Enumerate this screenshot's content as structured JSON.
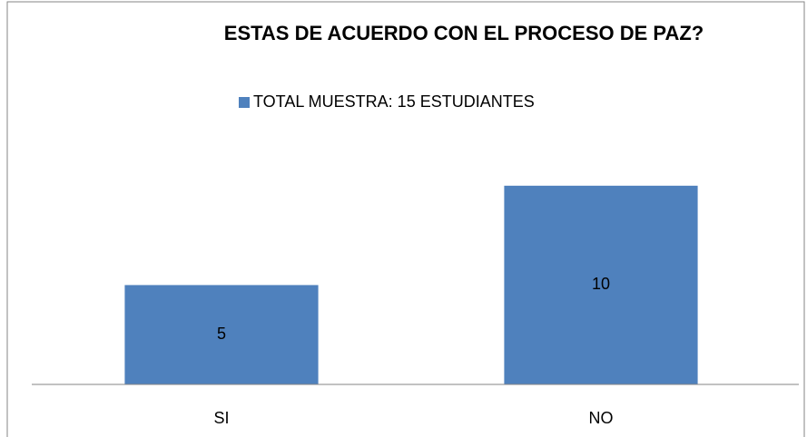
{
  "chart_data": {
    "type": "bar",
    "title": "ESTAS DE ACUERDO CON EL PROCESO DE PAZ?",
    "categories": [
      "SI",
      "NO"
    ],
    "series": [
      {
        "name": "TOTAL MUESTRA: 15 ESTUDIANTES",
        "color": "#4f81bd",
        "values": [
          5,
          10
        ]
      }
    ],
    "ylim": [
      0,
      12
    ]
  }
}
